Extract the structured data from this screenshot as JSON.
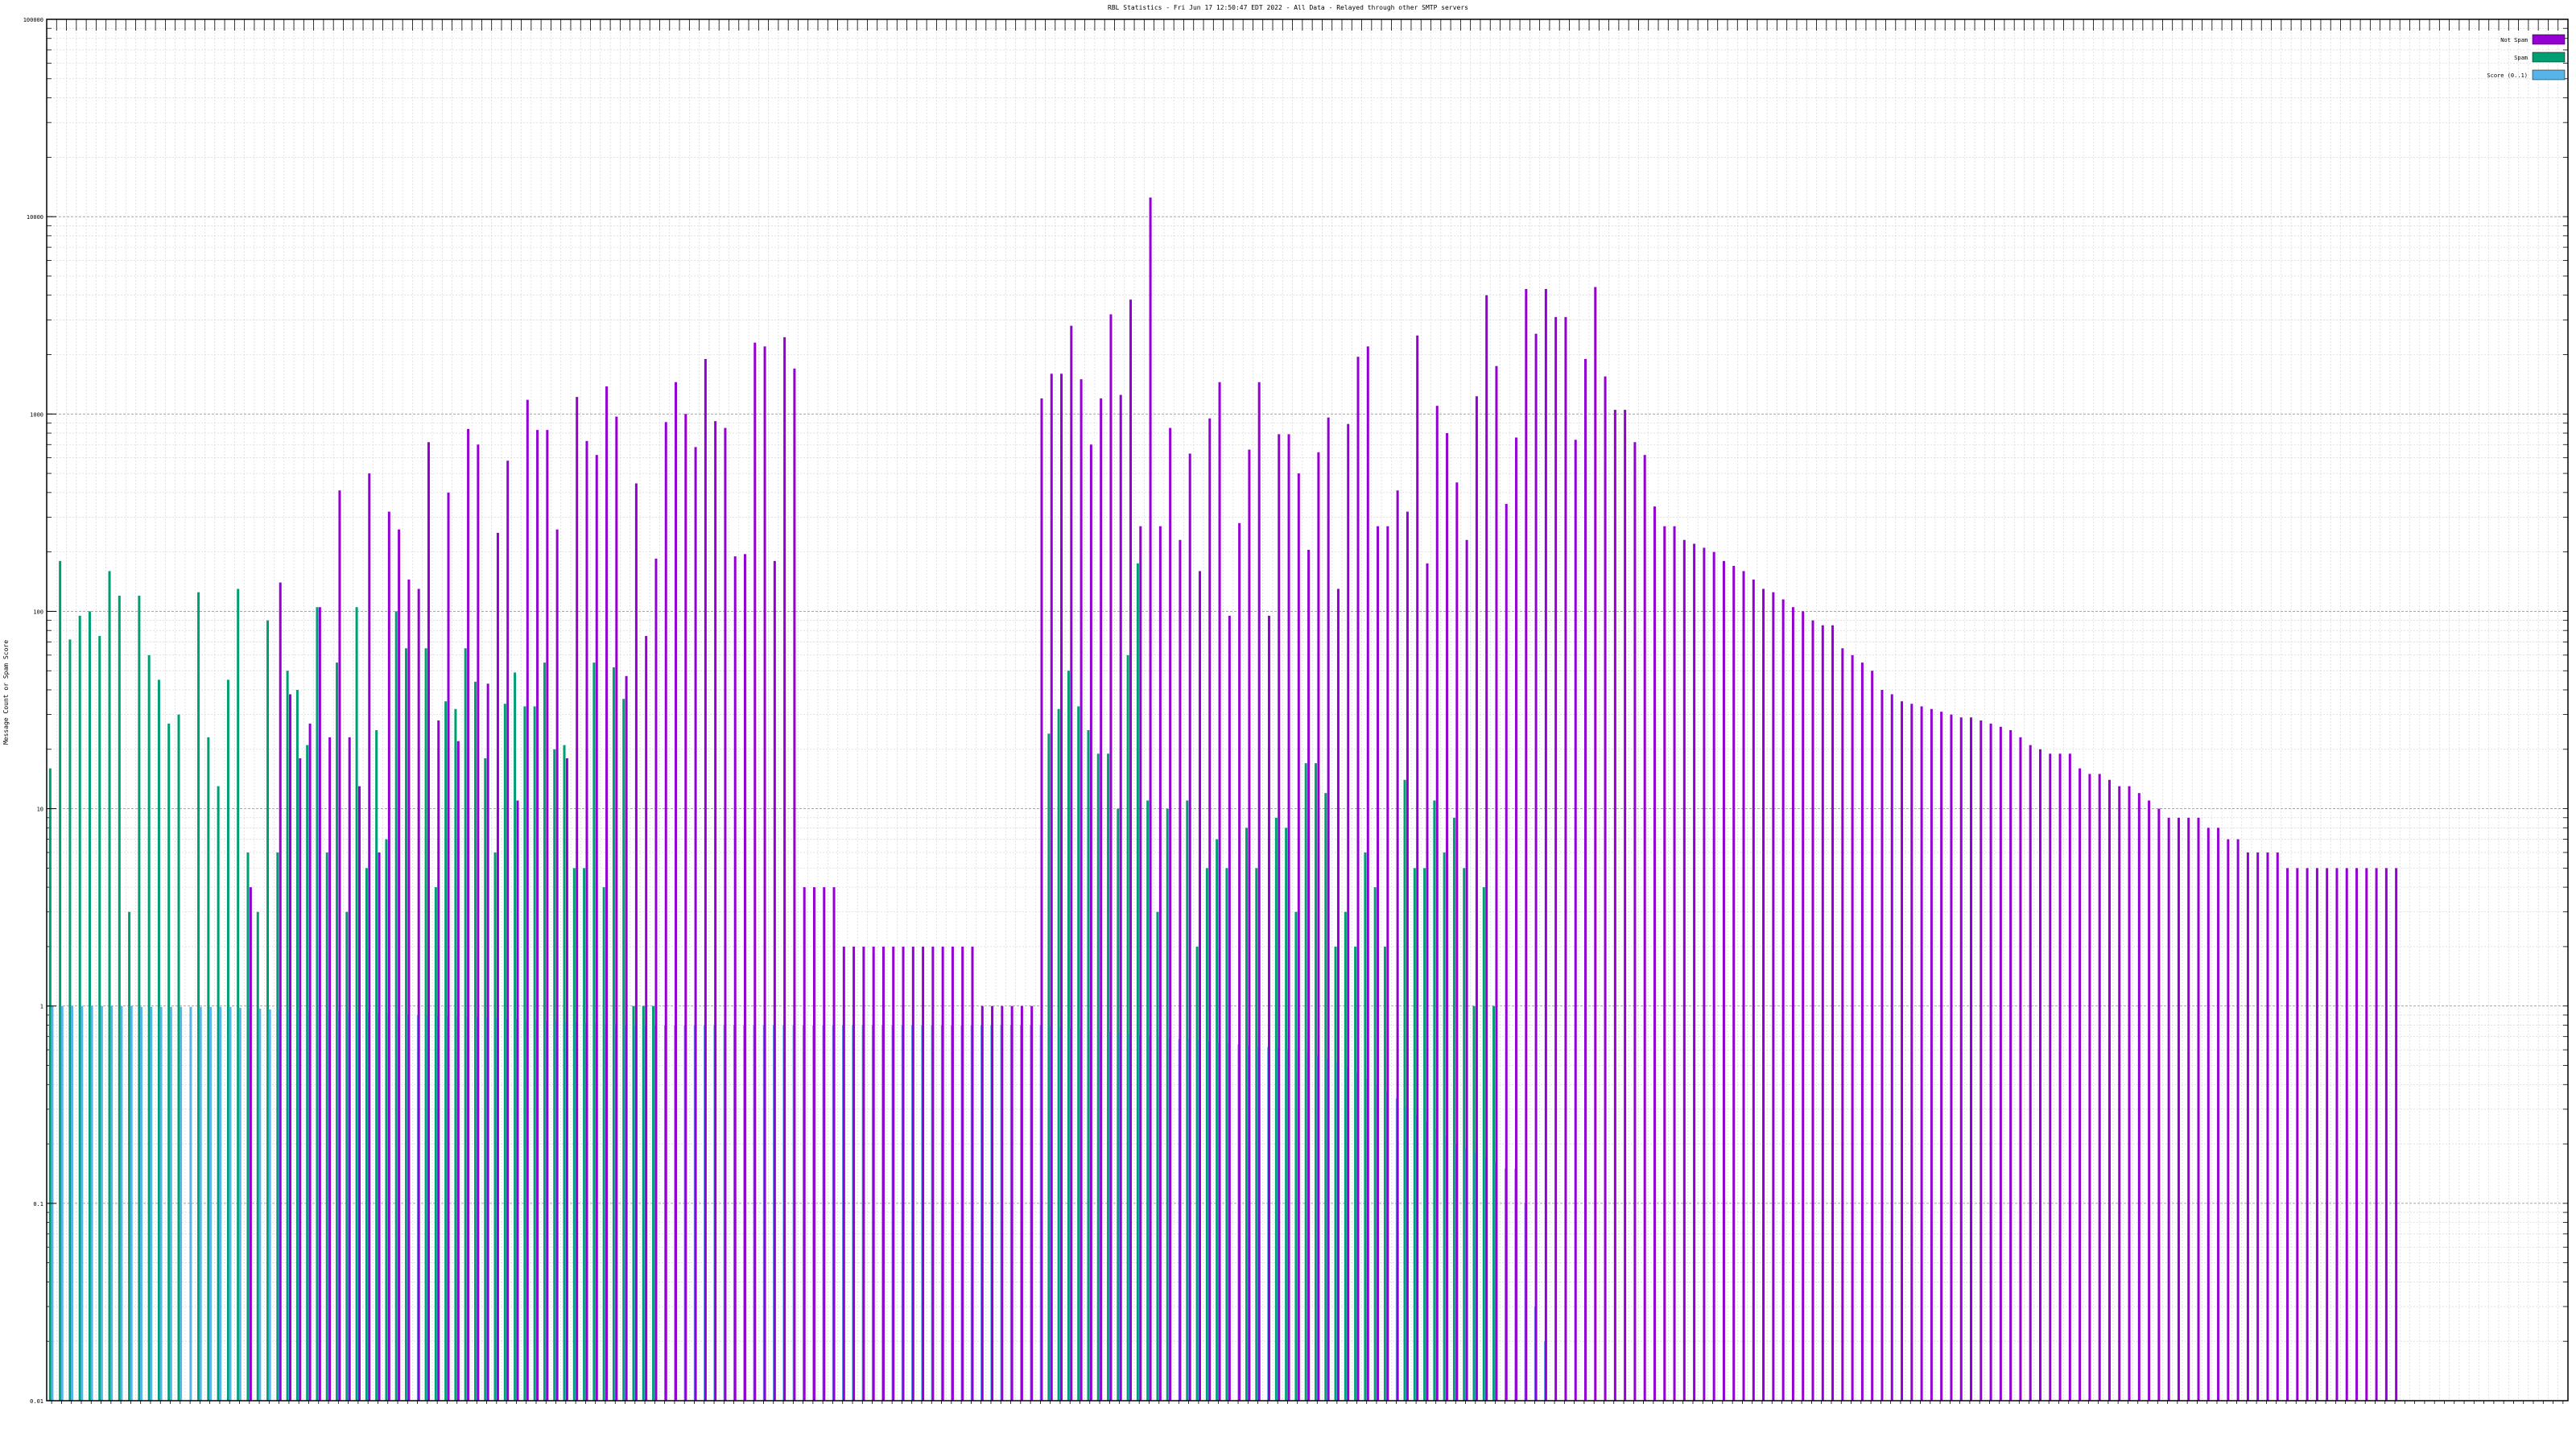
{
  "chart_data": {
    "type": "bar",
    "title": "RBL Statistics - Fri Jun 17 12:50:47 EDT 2022 - All Data - Relayed through other SMTP servers",
    "ylabel": "Message Count or Spam Score",
    "xlabel": "",
    "yscale": "log",
    "ylim": [
      0.01,
      100000
    ],
    "yticks": [
      "0.01",
      "0.1",
      "1",
      "10",
      "100",
      "1000",
      "10000",
      "100000"
    ],
    "grid": true,
    "legend_position": "top-right",
    "legend": [
      {
        "name": "Not Spam",
        "color": "#9400d3"
      },
      {
        "name": "Spam",
        "color": "#009e73"
      },
      {
        "name": "Score (0..1)",
        "color": "#56b4e9"
      }
    ],
    "category_count": 255,
    "series": [
      {
        "name": "Not Spam",
        "color": "#9400d3",
        "values": [
          0,
          0,
          0,
          0,
          0,
          0,
          0,
          0,
          0,
          0,
          0,
          0,
          0,
          0,
          0,
          0,
          0,
          0,
          0,
          0,
          4,
          0,
          0,
          140,
          38,
          18,
          27,
          105,
          23,
          410,
          23,
          13,
          500,
          6,
          320,
          260,
          145,
          130,
          720,
          28,
          400,
          22,
          840,
          700,
          43,
          250,
          580,
          11,
          1180,
          830,
          830,
          260,
          18,
          1220,
          730,
          620,
          1380,
          970,
          47,
          445,
          75,
          185,
          910,
          1450,
          1000,
          680,
          1900,
          920,
          850,
          190,
          195,
          2300,
          2200,
          180,
          2450,
          1700,
          4,
          4,
          4,
          4,
          2,
          2,
          2,
          2,
          2,
          2,
          2,
          2,
          2,
          2,
          2,
          2,
          2,
          2,
          1,
          1,
          1,
          1,
          1,
          1,
          1200,
          1600,
          1600,
          2800,
          1500,
          700,
          1200,
          3200,
          1250,
          3800,
          270,
          12500,
          270,
          850,
          230,
          630,
          160,
          950,
          1450,
          95,
          280,
          660,
          1450,
          95,
          790,
          790,
          500,
          205,
          640,
          960,
          130,
          890,
          1950,
          2200,
          270,
          270,
          410,
          320,
          2500,
          175,
          1100,
          800,
          450,
          230,
          1230,
          4000,
          1750,
          350,
          760,
          4300,
          2550,
          4300,
          3100,
          3100,
          740,
          1900,
          4400,
          1550,
          1050,
          1050,
          720,
          620,
          340,
          270,
          270,
          230,
          220,
          210,
          200,
          180,
          170,
          160,
          145,
          130,
          125,
          115,
          105,
          100,
          90,
          85,
          85,
          65,
          60,
          55,
          50,
          40,
          38,
          35,
          34,
          33,
          32,
          31,
          30,
          29,
          29,
          28,
          27,
          26,
          25,
          23,
          21,
          20,
          19,
          19,
          19,
          16,
          15,
          15,
          14,
          13,
          13,
          12,
          11,
          10,
          9,
          9,
          9,
          9,
          8,
          8,
          7,
          7,
          6,
          6,
          6,
          6,
          5,
          5,
          5,
          5,
          5,
          5,
          5,
          5,
          5,
          5,
          5,
          5
        ]
      },
      {
        "name": "Spam",
        "color": "#009e73",
        "values": [
          16,
          180,
          72,
          95,
          100,
          75,
          160,
          120,
          3,
          120,
          60,
          45,
          27,
          30,
          0,
          125,
          23,
          13,
          45,
          130,
          6,
          3,
          90,
          6,
          50,
          40,
          21,
          105,
          6,
          55,
          3,
          105,
          5,
          25,
          7,
          100,
          65,
          0,
          65,
          4,
          35,
          32,
          65,
          44,
          18,
          6,
          34,
          49,
          33,
          33,
          55,
          20,
          21,
          5,
          5,
          55,
          4,
          52,
          36,
          1,
          1,
          1,
          0,
          0,
          0,
          0,
          0,
          0,
          0,
          0,
          0,
          0,
          0,
          0,
          0,
          0,
          0,
          0,
          0,
          0,
          0,
          0,
          0,
          0,
          0,
          0,
          0,
          0,
          0,
          0,
          0,
          0,
          0,
          0,
          0,
          0,
          0,
          0,
          0,
          0,
          0,
          24,
          32,
          50,
          33,
          25,
          19,
          19,
          10,
          60,
          175,
          11,
          3,
          10,
          0,
          11,
          2,
          5,
          7,
          5,
          0,
          8,
          5,
          0,
          9,
          8,
          3,
          17,
          17,
          12,
          2,
          3,
          2,
          6,
          4,
          2,
          0,
          14,
          5,
          5,
          11,
          6,
          9,
          5,
          1,
          4,
          1,
          0,
          0,
          0,
          0,
          0,
          0,
          0,
          0,
          0,
          0,
          0,
          0,
          0,
          0,
          0,
          0,
          0,
          0,
          0,
          0,
          0,
          0,
          0,
          0,
          0,
          0,
          0,
          0,
          0,
          0,
          0,
          0,
          0,
          0,
          0,
          0,
          0,
          0,
          0,
          0,
          0,
          0,
          0,
          0,
          0,
          0,
          0,
          0,
          0,
          0,
          0,
          0,
          0,
          0,
          0,
          0,
          0,
          0,
          0,
          0,
          0,
          0,
          0,
          0,
          0,
          0,
          0,
          0,
          0,
          0,
          0,
          0,
          0,
          0,
          0,
          0,
          0,
          0,
          0,
          0,
          0,
          0,
          0,
          0,
          0,
          0,
          0,
          0,
          0,
          0,
          0,
          0,
          0,
          0,
          0,
          0,
          0,
          0,
          0,
          0,
          0,
          0,
          0,
          0,
          0,
          0,
          0,
          0,
          0,
          0
        ]
      },
      {
        "name": "Score (0..1)",
        "color": "#56b4e9",
        "values": [
          1.0,
          1.0,
          1.0,
          1.0,
          1.0,
          1.0,
          1.0,
          1.0,
          1.0,
          0.99,
          0.99,
          0.99,
          0.99,
          0.99,
          0.99,
          0.99,
          0.99,
          0.99,
          0.99,
          0.98,
          0.97,
          0.97,
          0.96,
          0.96,
          0.96,
          0.95,
          0.95,
          0.95,
          0.94,
          0.94,
          0.93,
          0.93,
          0.93,
          0.92,
          0.92,
          0.91,
          0.91,
          0.9,
          0.9,
          0.89,
          0.89,
          0.88,
          0.88,
          0.88,
          0.87,
          0.87,
          0.86,
          0.86,
          0.85,
          0.85,
          0.84,
          0.84,
          0.83,
          0.83,
          0.82,
          0.82,
          0.81,
          0.81,
          0.8,
          0.8,
          0.8,
          0.8,
          0.8,
          0.8,
          0.8,
          0.8,
          0.8,
          0.8,
          0.8,
          0.8,
          0.8,
          0.8,
          0.8,
          0.8,
          0.8,
          0.8,
          0.8,
          0.8,
          0.8,
          0.8,
          0.8,
          0.8,
          0.8,
          0.8,
          0.8,
          0.8,
          0.8,
          0.8,
          0.8,
          0.8,
          0.8,
          0.8,
          0.8,
          0.8,
          0.8,
          0.8,
          0.8,
          0.8,
          0.8,
          0.8,
          0.8,
          0.79,
          0.78,
          0.77,
          0.76,
          0.75,
          0.74,
          0.74,
          0.73,
          0.72,
          0.71,
          0.71,
          0.7,
          0.69,
          0.68,
          0.68,
          0.67,
          0.66,
          0.65,
          0.65,
          0.64,
          0.63,
          0.62,
          0.62,
          0.61,
          0.6,
          0.59,
          0.58,
          0.56,
          0.54,
          0.52,
          0.49,
          0.46,
          0.43,
          0.4,
          0.37,
          0.34,
          0.31,
          0.28,
          0.26,
          0.24,
          0.22,
          0.2,
          0.19,
          0.18,
          0.17,
          0.16,
          0.15,
          0.15,
          0.1,
          0.03,
          0.02,
          0,
          0,
          0,
          0,
          0,
          0,
          0,
          0,
          0,
          0,
          0,
          0,
          0,
          0,
          0,
          0,
          0,
          0,
          0,
          0,
          0,
          0,
          0,
          0,
          0,
          0,
          0,
          0,
          0,
          0,
          0,
          0,
          0,
          0,
          0,
          0,
          0,
          0,
          0,
          0,
          0,
          0,
          0,
          0,
          0,
          0,
          0,
          0,
          0,
          0,
          0,
          0,
          0,
          0,
          0,
          0,
          0,
          0,
          0,
          0,
          0,
          0,
          0,
          0,
          0,
          0,
          0,
          0,
          0,
          0,
          0,
          0,
          0,
          0,
          0,
          0,
          0,
          0,
          0,
          0,
          0,
          0,
          0,
          0,
          0,
          0,
          0,
          0,
          0,
          0,
          0,
          0,
          0,
          0,
          0,
          0,
          0,
          0,
          0,
          0,
          0,
          0,
          0,
          0,
          0,
          0,
          0,
          0,
          0,
          0,
          0,
          0,
          0
        ]
      }
    ]
  }
}
